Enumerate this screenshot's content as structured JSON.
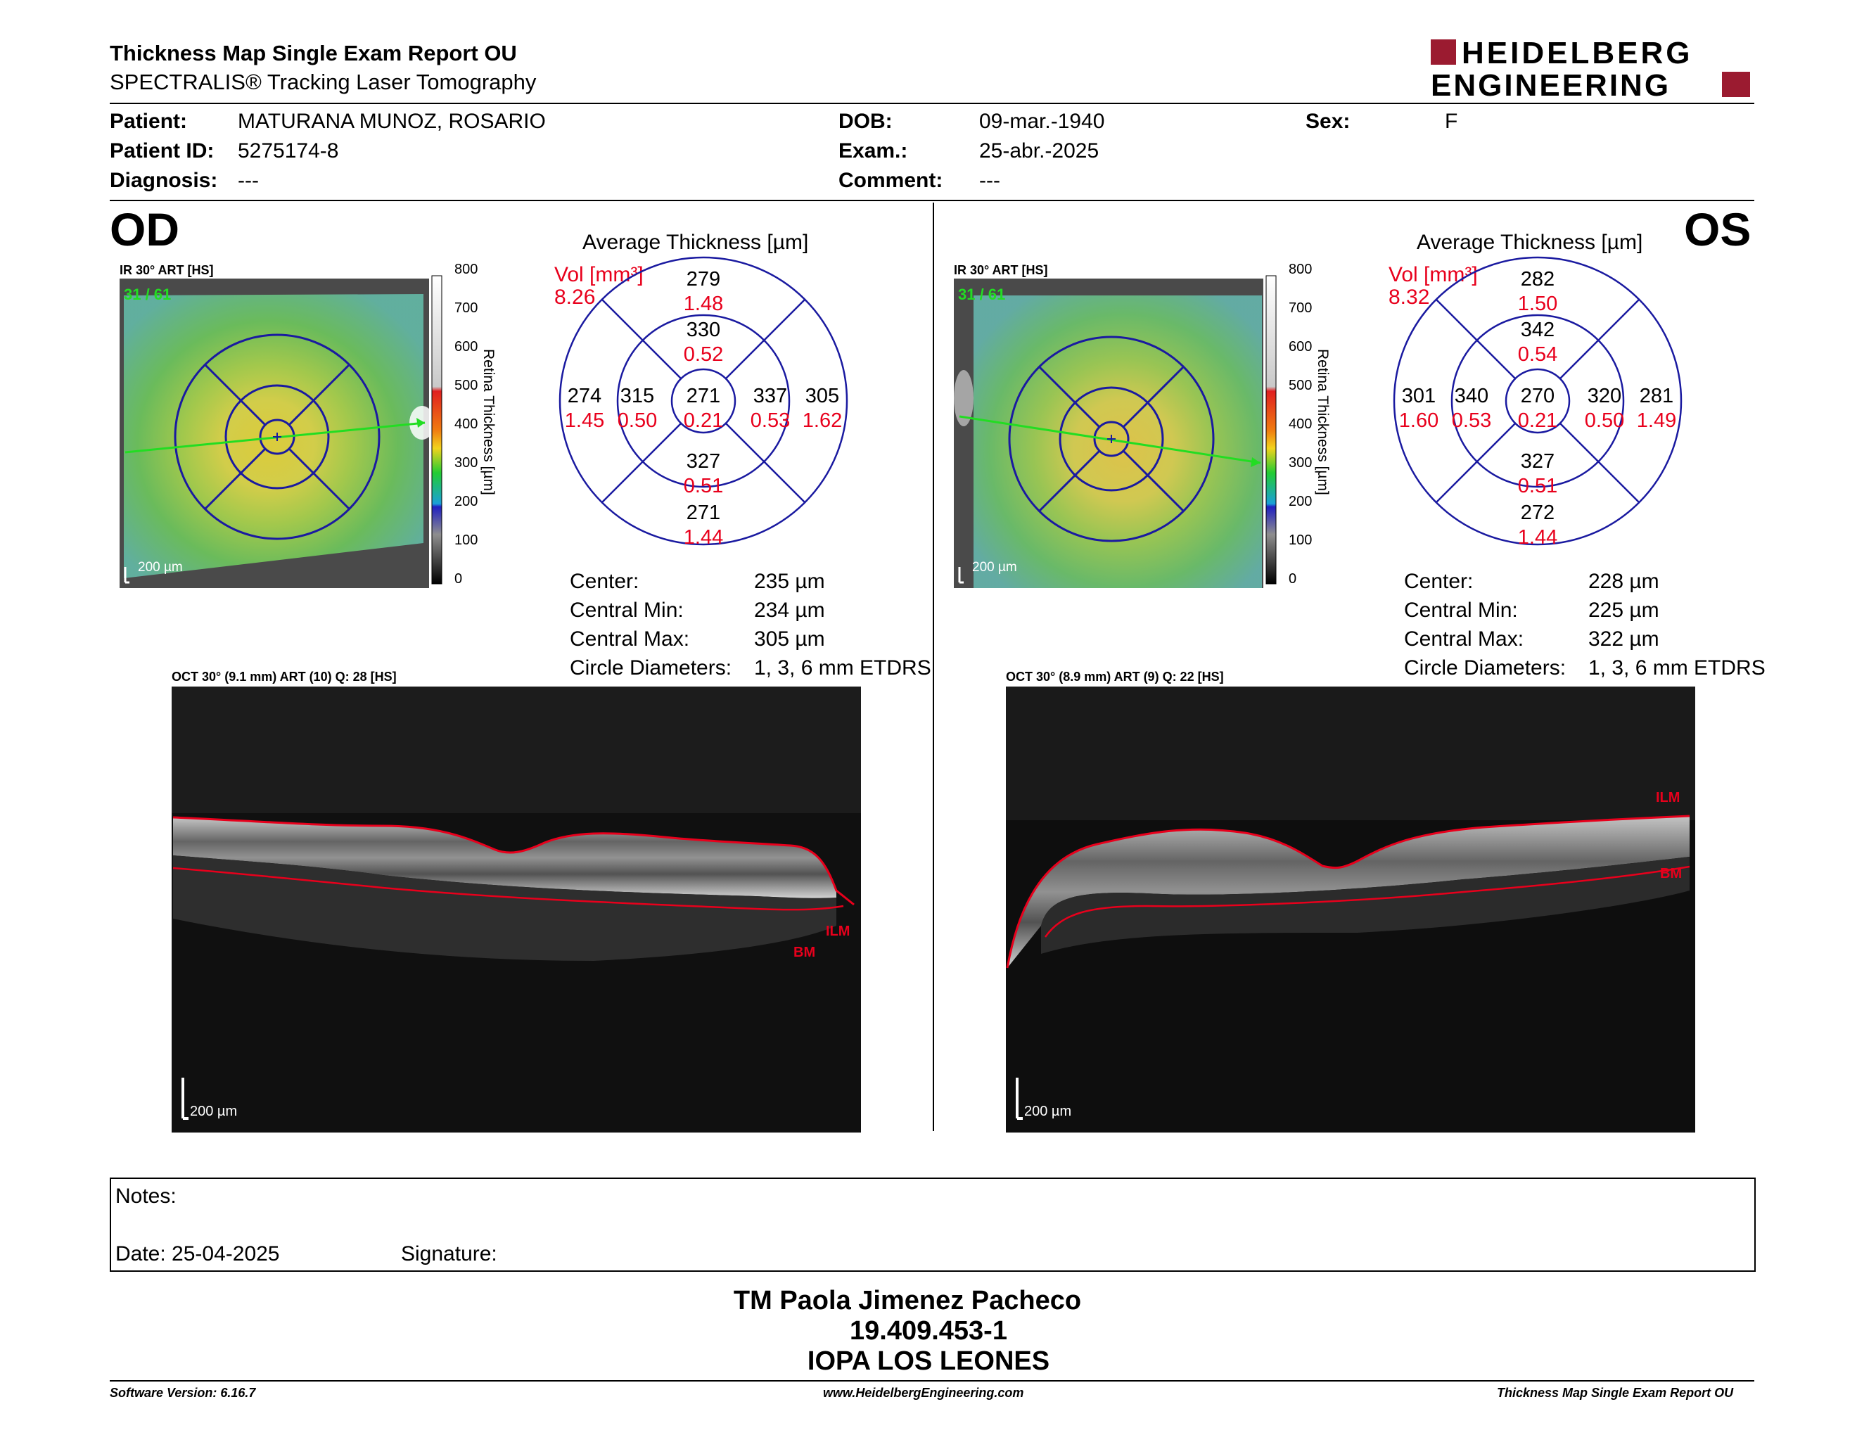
{
  "header": {
    "title": "Thickness Map Single Exam Report OU",
    "subtitle": "SPECTRALIS® Tracking Laser Tomography",
    "logo_line1": "HEIDELBERG",
    "logo_line2": "ENGINEERING"
  },
  "patient": {
    "patient_label": "Patient:",
    "patient_value": "MATURANA MUNOZ, ROSARIO",
    "id_label": "Patient ID:",
    "id_value": "5275174-8",
    "diagnosis_label": "Diagnosis:",
    "diagnosis_value": "---",
    "dob_label": "DOB:",
    "dob_value": "09-mar.-1940",
    "exam_label": "Exam.:",
    "exam_value": "25-abr.-2025",
    "comment_label": "Comment:",
    "comment_value": "---",
    "sex_label": "Sex:",
    "sex_value": "F"
  },
  "od": {
    "eye": "OD",
    "ir_label": "IR 30° ART [HS]",
    "frame": "31 / 61",
    "scale": "200 µm",
    "colorbar_ticks": [
      "800",
      "700",
      "600",
      "500",
      "400",
      "300",
      "200",
      "100",
      "0"
    ],
    "colorbar_label": "Retina Thickness [µm]",
    "avg_title": "Average Thickness [µm]",
    "vol_label": "Vol [mm³]",
    "vol_value": "8.26",
    "grid": {
      "outer_top": "279",
      "outer_top_v": "1.48",
      "inner_top": "330",
      "inner_top_v": "0.52",
      "outer_left": "274",
      "outer_left_v": "1.45",
      "inner_left": "315",
      "inner_left_v": "0.50",
      "center": "271",
      "center_v": "0.21",
      "inner_right": "337",
      "inner_right_v": "0.53",
      "outer_right": "305",
      "outer_right_v": "1.62",
      "inner_bottom": "327",
      "inner_bottom_v": "0.51",
      "outer_bottom": "271",
      "outer_bottom_v": "1.44"
    },
    "stats": {
      "center_l": "Center:",
      "center_v": "235 µm",
      "min_l": "Central Min:",
      "min_v": "234 µm",
      "max_l": "Central Max:",
      "max_v": "305 µm",
      "diam_l": "Circle Diameters:",
      "diam_v": "1, 3, 6 mm ETDRS"
    },
    "oct_label": "OCT 30° (9.1 mm) ART (10) Q: 28 [HS]",
    "oct_scale": "200 µm",
    "ilm": "ILM",
    "bm": "BM"
  },
  "os": {
    "eye": "OS",
    "ir_label": "IR 30° ART [HS]",
    "frame": "31 / 61",
    "scale": "200 µm",
    "colorbar_ticks": [
      "800",
      "700",
      "600",
      "500",
      "400",
      "300",
      "200",
      "100",
      "0"
    ],
    "colorbar_label": "Retina Thickness [µm]",
    "avg_title": "Average Thickness [µm]",
    "vol_label": "Vol [mm³]",
    "vol_value": "8.32",
    "grid": {
      "outer_top": "282",
      "outer_top_v": "1.50",
      "inner_top": "342",
      "inner_top_v": "0.54",
      "outer_left": "301",
      "outer_left_v": "1.60",
      "inner_left": "340",
      "inner_left_v": "0.53",
      "center": "270",
      "center_v": "0.21",
      "inner_right": "320",
      "inner_right_v": "0.50",
      "outer_right": "281",
      "outer_right_v": "1.49",
      "inner_bottom": "327",
      "inner_bottom_v": "0.51",
      "outer_bottom": "272",
      "outer_bottom_v": "1.44"
    },
    "stats": {
      "center_l": "Center:",
      "center_v": "228 µm",
      "min_l": "Central Min:",
      "min_v": "225 µm",
      "max_l": "Central Max:",
      "max_v": "322 µm",
      "diam_l": "Circle Diameters:",
      "diam_v": "1, 3, 6 mm ETDRS"
    },
    "oct_label": "OCT 30° (8.9 mm) ART (9) Q: 22 [HS]",
    "oct_scale": "200 µm",
    "ilm": "ILM",
    "bm": "BM"
  },
  "notes": {
    "notes_label": "Notes:",
    "date_label": "Date: 25-04-2025",
    "signature_label": "Signature:"
  },
  "signature": {
    "name": "TM Paola Jimenez Pacheco",
    "rut": "19.409.453-1",
    "org": "IOPA LOS LEONES"
  },
  "footer": {
    "version": "Software Version: 6.16.7",
    "website": "www.HeidelbergEngineering.com",
    "report": "Thickness Map Single Exam Report OU"
  },
  "colors": {
    "volume_red": "#e8001c",
    "grid_blue": "#1a1aa0",
    "brand_red": "#9b1b30"
  }
}
